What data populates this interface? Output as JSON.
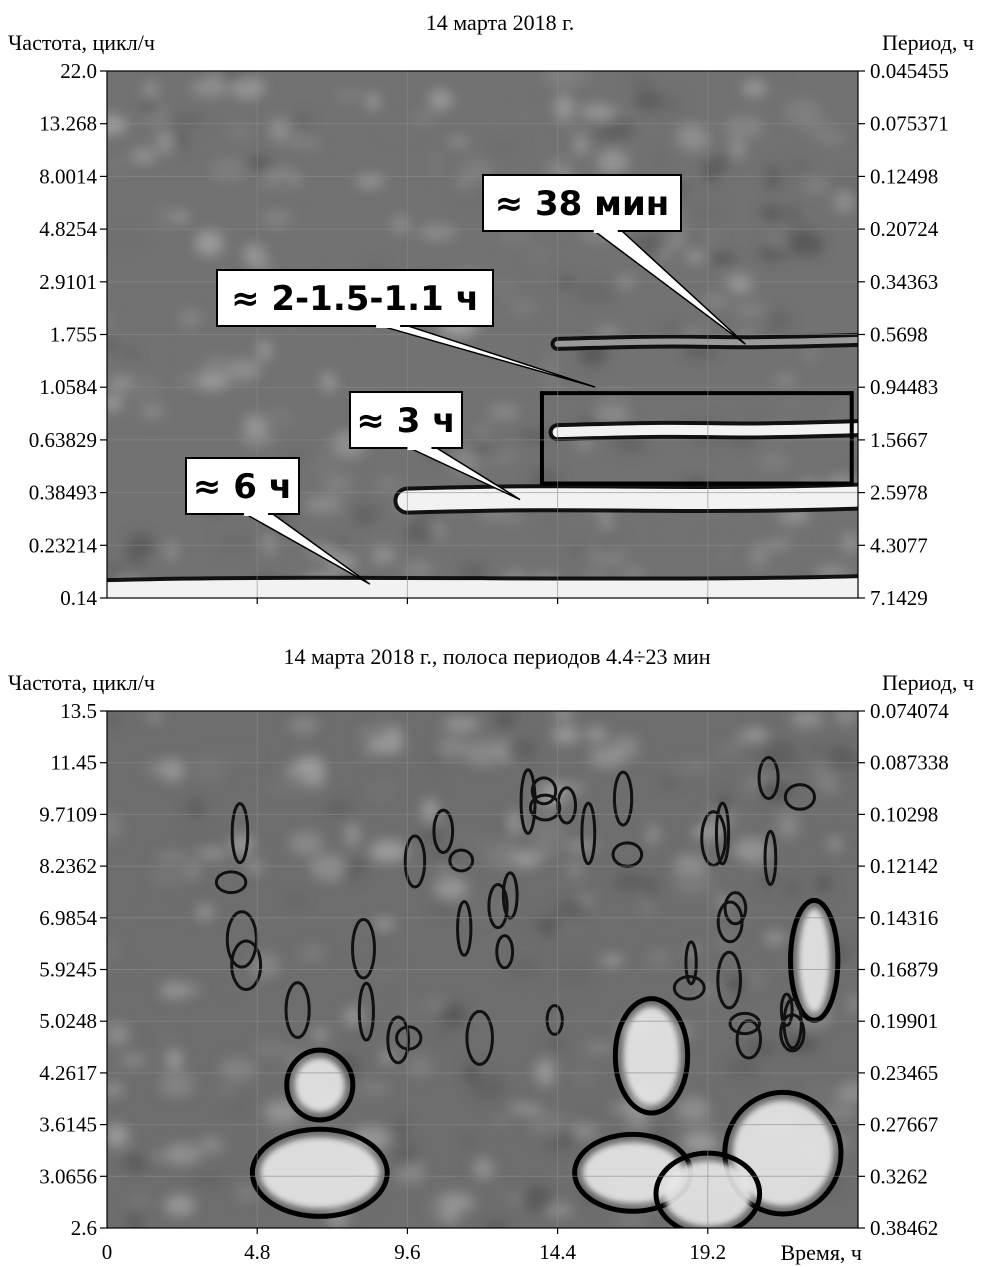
{
  "chart_data": [
    {
      "type": "heatmap",
      "title": "14 марта 2018 г.",
      "ylabel": "Частота, цикл/ч",
      "ylabel_right": "Период, ч",
      "y_scale": "log",
      "ylim": [
        0.14,
        22.0
      ],
      "y_ticks": [
        "22.0",
        "13.268",
        "8.0014",
        "4.8254",
        "2.9101",
        "1.755",
        "1.0584",
        "0.63829",
        "0.38493",
        "0.23214",
        "0.14"
      ],
      "y_ticks_right": [
        "0.045455",
        "0.075371",
        "0.12498",
        "0.20724",
        "0.34363",
        "0.5698",
        "0.94483",
        "1.5667",
        "2.5978",
        "4.3077",
        "7.1429"
      ],
      "xlim": [
        0,
        24
      ],
      "grid": true,
      "colors": {
        "low": "#6b6b6b",
        "high": "#ffffff",
        "ridge": "#000000"
      },
      "annotations": [
        {
          "text": "≈ 38 мин",
          "target_x": 20.4,
          "target_f": 1.6
        },
        {
          "text": "≈ 2-1.5-1.1 ч",
          "target_x": 15.6,
          "target_f": 1.06
        },
        {
          "text": "≈ 3 ч",
          "target_x": 13.2,
          "target_f": 0.36
        },
        {
          "text": "≈ 6 ч",
          "target_x": 8.4,
          "target_f": 0.16
        }
      ],
      "highlight_box": {
        "x": [
          13.9,
          23.8
        ],
        "f": [
          0.42,
          1.0
        ]
      },
      "ridges": [
        {
          "period_h": 6.5,
          "from_x": 0,
          "to_x": 24,
          "strength": "strong"
        },
        {
          "period_h": 2.7,
          "from_x": 9.6,
          "to_x": 24,
          "strength": "strong"
        },
        {
          "period_h": 1.4,
          "from_x": 14.4,
          "to_x": 24,
          "strength": "medium"
        },
        {
          "period_h": 0.6,
          "from_x": 14.4,
          "to_x": 24,
          "strength": "weak"
        }
      ]
    },
    {
      "type": "heatmap",
      "title": "14 марта 2018 г., полоса периодов 4.4÷23 мин",
      "ylabel": "Частота, цикл/ч",
      "ylabel_right": "Период, ч",
      "xlabel": "Время, ч",
      "y_scale": "log",
      "ylim": [
        2.6,
        13.5
      ],
      "y_ticks": [
        "13.5",
        "11.45",
        "9.7109",
        "8.2362",
        "6.9854",
        "5.9245",
        "5.0248",
        "4.2617",
        "3.6145",
        "3.0656",
        "2.6"
      ],
      "y_ticks_right": [
        "0.074074",
        "0.087338",
        "0.10298",
        "0.12142",
        "0.14316",
        "0.16879",
        "0.19901",
        "0.23465",
        "0.27667",
        "0.3262",
        "0.38462"
      ],
      "xlim": [
        0,
        24
      ],
      "x_ticks": [
        "0",
        "4.8",
        "9.6",
        "14.4",
        "19.2"
      ],
      "grid": true,
      "colors": {
        "low": "#6b6b6b",
        "high": "#ffffff",
        "contour": "#000000"
      },
      "bright_regions": [
        {
          "x": 6.8,
          "f": 3.1,
          "rx": 1.9,
          "rf": 0.35
        },
        {
          "x": 6.8,
          "f": 4.1,
          "rx": 0.8,
          "rf": 0.35
        },
        {
          "x": 16.8,
          "f": 3.1,
          "rx": 1.6,
          "rf": 0.3
        },
        {
          "x": 17.4,
          "f": 4.5,
          "rx": 0.9,
          "rf": 0.7
        },
        {
          "x": 21.6,
          "f": 3.3,
          "rx": 1.6,
          "rf": 0.55
        },
        {
          "x": 22.6,
          "f": 6.1,
          "rx": 0.5,
          "rf": 1.0
        },
        {
          "x": 19.2,
          "f": 2.9,
          "rx": 1.4,
          "rf": 0.3
        }
      ]
    }
  ]
}
